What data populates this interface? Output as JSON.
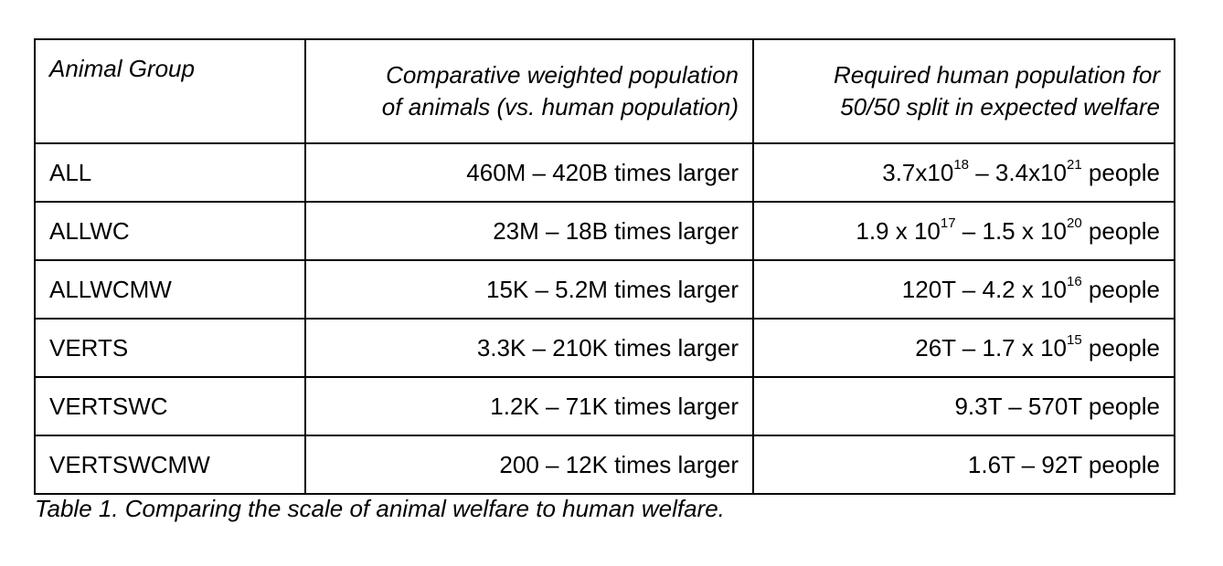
{
  "headers": [
    "Animal Group",
    "Comparative weighted population of animals (vs. human population)",
    "Required human population for 50/50 split in expected welfare"
  ],
  "header_lines": [
    [
      "Animal Group"
    ],
    [
      "Comparative weighted population",
      "of animals (vs. human population)"
    ],
    [
      "Required human population for",
      "50/50 split in expected welfare"
    ]
  ],
  "rows": [
    {
      "group": "ALL",
      "comparative": "460M – 420B times larger",
      "required": [
        {
          "t": "3.7x10"
        },
        {
          "t": "18",
          "sup": true
        },
        {
          "t": " – 3.4x10"
        },
        {
          "t": "21",
          "sup": true
        },
        {
          "t": " people"
        }
      ]
    },
    {
      "group": "ALLWC",
      "comparative": "23M – 18B times larger",
      "required": [
        {
          "t": "1.9 x 10"
        },
        {
          "t": "17",
          "sup": true
        },
        {
          "t": " – 1.5 x 10"
        },
        {
          "t": "20",
          "sup": true
        },
        {
          "t": " people"
        }
      ]
    },
    {
      "group": "ALLWCMW",
      "comparative": "15K – 5.2M times larger",
      "required": [
        {
          "t": "120T – 4.2 x 10"
        },
        {
          "t": "16",
          "sup": true
        },
        {
          "t": " people"
        }
      ]
    },
    {
      "group": "VERTS",
      "comparative": "3.3K – 210K times larger",
      "required": [
        {
          "t": "26T – 1.7 x 10"
        },
        {
          "t": "15",
          "sup": true
        },
        {
          "t": " people"
        }
      ]
    },
    {
      "group": "VERTSWC",
      "comparative": "1.2K – 71K times larger",
      "required": [
        {
          "t": "9.3T – 570T people"
        }
      ]
    },
    {
      "group": "VERTSWCMW",
      "comparative": "200 – 12K times larger",
      "required": [
        {
          "t": "1.6T – 92T people"
        }
      ]
    }
  ],
  "caption": "Table 1. Comparing the scale of animal welfare to human welfare."
}
